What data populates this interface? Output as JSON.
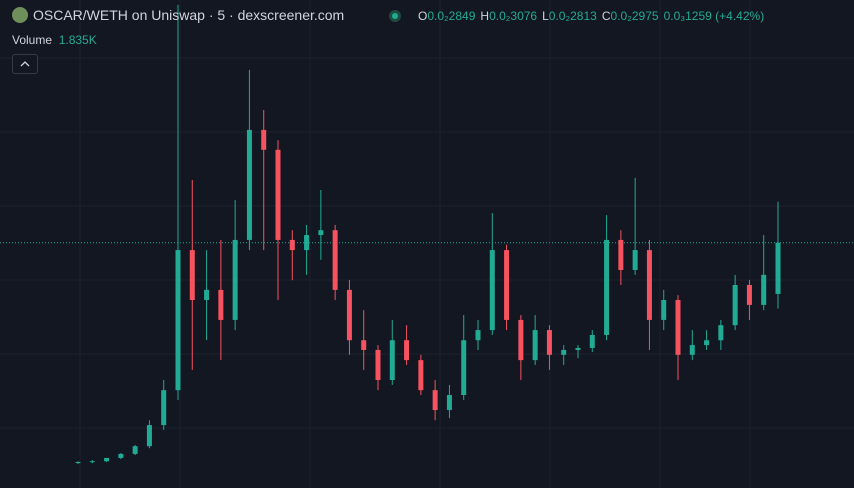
{
  "header": {
    "title": "OSCAR/WETH on Uniswap · 5 · dexscreener.com",
    "ohlc": [
      {
        "label": "O",
        "value": "0.0₂2849"
      },
      {
        "label": "H",
        "value": "0.0₂3076"
      },
      {
        "label": "L",
        "value": "0.0₂2813"
      },
      {
        "label": "C",
        "value": "0.0₂2975"
      }
    ],
    "change": "0.0₃1259 (+4.42%)",
    "volume_label": "Volume",
    "volume_value": "1.835K"
  },
  "chart_data": {
    "type": "candlestick",
    "ylim": [
      0.002371,
      0.003573
    ],
    "up_color": "#22ab94",
    "down_color": "#f7525f",
    "open": [
      0.002435,
      0.002435,
      0.002437,
      0.002445,
      0.002455,
      0.002474,
      0.002526,
      0.002612,
      0.002957,
      0.002834,
      0.002859,
      0.002785,
      0.002982,
      0.003253,
      0.003204,
      0.002982,
      0.002957,
      0.002994,
      0.003006,
      0.002859,
      0.002735,
      0.002711,
      0.002637,
      0.002735,
      0.002686,
      0.002612,
      0.002563,
      0.0026,
      0.002735,
      0.00276,
      0.002957,
      0.002785,
      0.002686,
      0.00276,
      0.002699,
      0.002711,
      0.002716,
      0.002748,
      0.002982,
      0.002908,
      0.002957,
      0.002785,
      0.002834,
      0.002699,
      0.002723,
      0.002735,
      0.002772,
      0.002871,
      0.002822,
      0.002849
    ],
    "high": [
      0.002437,
      0.00244,
      0.002445,
      0.002457,
      0.002477,
      0.002538,
      0.002637,
      0.003561,
      0.00313,
      0.002957,
      0.002982,
      0.00308,
      0.003401,
      0.003302,
      0.003228,
      0.003006,
      0.003019,
      0.003105,
      0.003019,
      0.002883,
      0.002809,
      0.002723,
      0.002785,
      0.002772,
      0.002699,
      0.002637,
      0.002625,
      0.002797,
      0.002785,
      0.003048,
      0.00297,
      0.002797,
      0.002797,
      0.002772,
      0.002723,
      0.002723,
      0.00276,
      0.003043,
      0.003006,
      0.003135,
      0.002982,
      0.002859,
      0.002846,
      0.00276,
      0.00276,
      0.002785,
      0.002896,
      0.002883,
      0.002994,
      0.003076
    ],
    "low": [
      0.00243,
      0.002432,
      0.002435,
      0.002442,
      0.002452,
      0.002469,
      0.002514,
      0.002588,
      0.002662,
      0.002735,
      0.002686,
      0.00276,
      0.002957,
      0.002957,
      0.002834,
      0.002883,
      0.002896,
      0.002933,
      0.002834,
      0.002699,
      0.002662,
      0.002612,
      0.002625,
      0.002674,
      0.0026,
      0.002538,
      0.002543,
      0.002588,
      0.002711,
      0.002748,
      0.00276,
      0.002637,
      0.002674,
      0.002662,
      0.002674,
      0.002691,
      0.002706,
      0.002735,
      0.002871,
      0.002896,
      0.002711,
      0.00276,
      0.002637,
      0.002686,
      0.002711,
      0.002711,
      0.00276,
      0.002785,
      0.002809,
      0.002813
    ],
    "close": [
      0.002435,
      0.002437,
      0.002445,
      0.002455,
      0.002474,
      0.002526,
      0.002612,
      0.002957,
      0.002834,
      0.002859,
      0.002785,
      0.002982,
      0.003253,
      0.003204,
      0.002982,
      0.002957,
      0.002994,
      0.003006,
      0.002859,
      0.002735,
      0.002711,
      0.002637,
      0.002735,
      0.002686,
      0.002612,
      0.002563,
      0.0026,
      0.002735,
      0.00276,
      0.002957,
      0.002785,
      0.002686,
      0.00276,
      0.002699,
      0.002711,
      0.002716,
      0.002748,
      0.002982,
      0.002908,
      0.002957,
      0.002785,
      0.002834,
      0.002699,
      0.002723,
      0.002735,
      0.002772,
      0.002871,
      0.002822,
      0.002896,
      0.002975
    ]
  }
}
